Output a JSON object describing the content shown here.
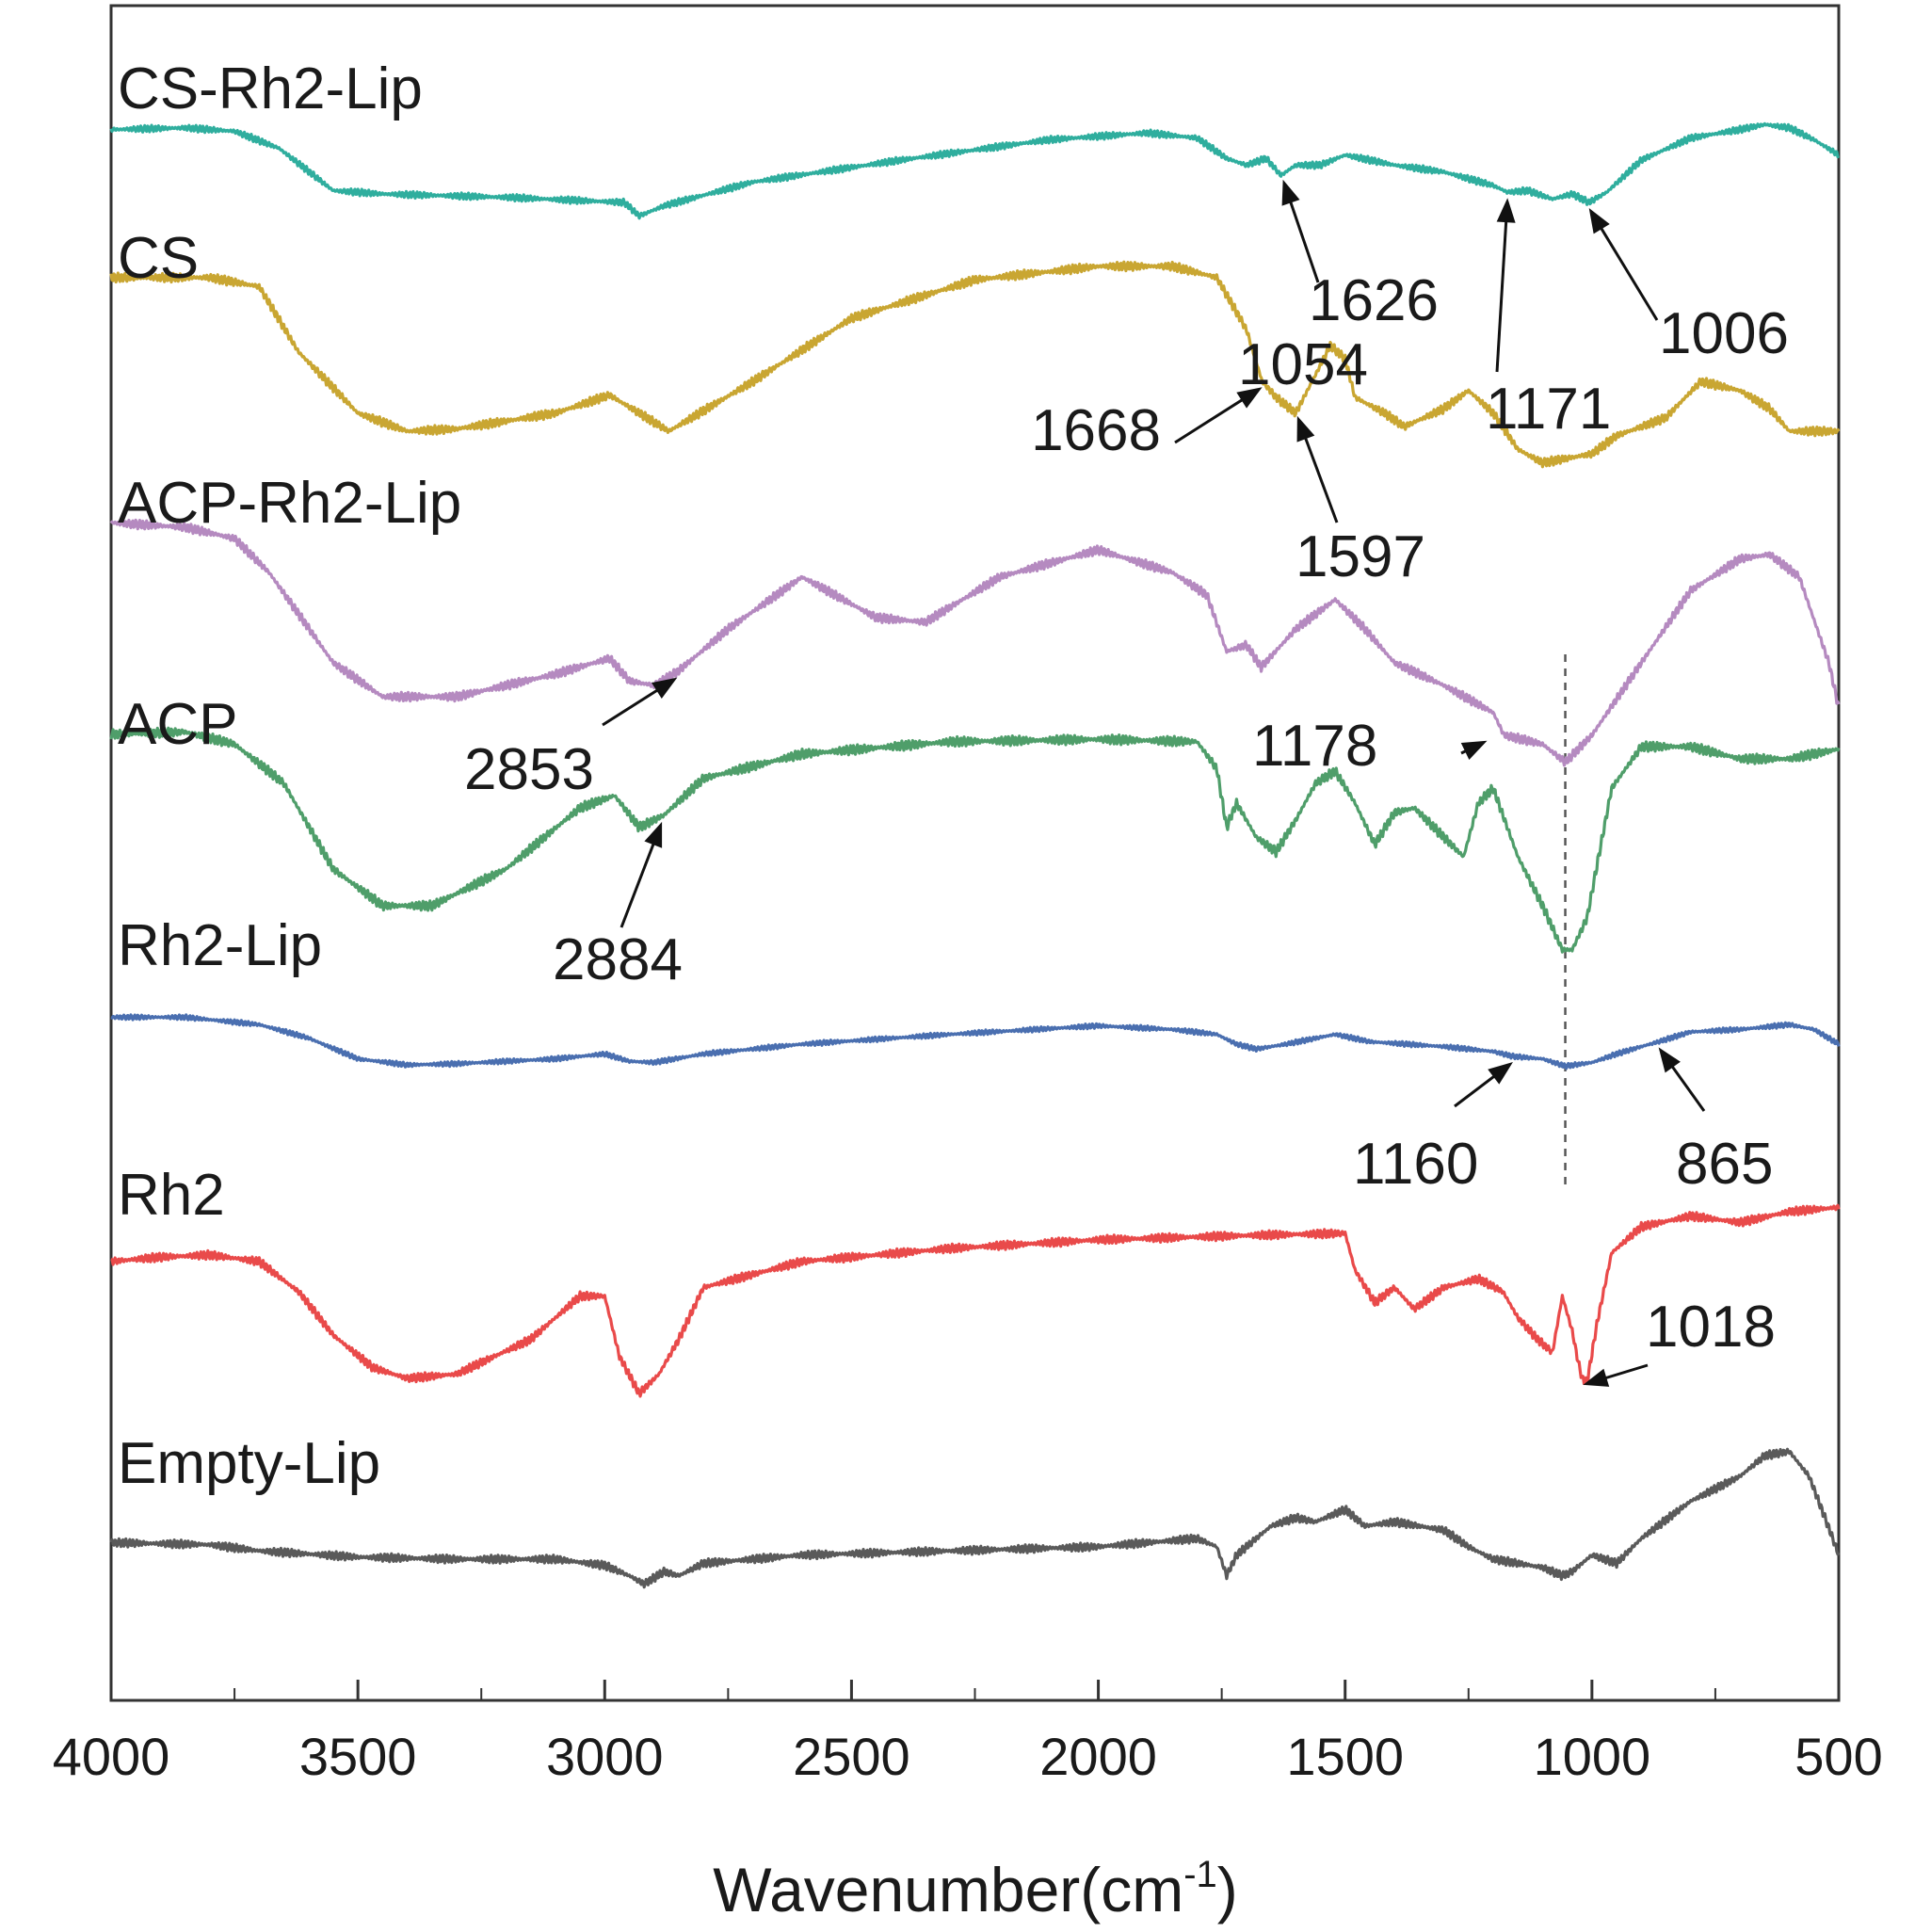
{
  "chart_data": {
    "type": "line",
    "xlabel": "Wavenumber(cm",
    "xlabel_sup": "-1",
    "xlabel_close": ")",
    "xlim": [
      4000,
      500
    ],
    "ticks": [
      "4000",
      "3500",
      "3000",
      "2500",
      "2000",
      "1500",
      "1000",
      "500"
    ],
    "series": [
      {
        "name": "CS-Rh2-Lip",
        "color": "#2fae9e",
        "points": [
          [
            4000,
            0.93
          ],
          [
            3850,
            0.94
          ],
          [
            3750,
            0.92
          ],
          [
            3660,
            0.82
          ],
          [
            3550,
            0.57
          ],
          [
            3450,
            0.55
          ],
          [
            3200,
            0.53
          ],
          [
            2960,
            0.5
          ],
          [
            2930,
            0.42
          ],
          [
            2880,
            0.48
          ],
          [
            2700,
            0.62
          ],
          [
            2400,
            0.75
          ],
          [
            2100,
            0.87
          ],
          [
            1900,
            0.91
          ],
          [
            1800,
            0.88
          ],
          [
            1740,
            0.76
          ],
          [
            1700,
            0.72
          ],
          [
            1660,
            0.76
          ],
          [
            1630,
            0.66
          ],
          [
            1600,
            0.72
          ],
          [
            1550,
            0.72
          ],
          [
            1500,
            0.78
          ],
          [
            1450,
            0.75
          ],
          [
            1400,
            0.72
          ],
          [
            1300,
            0.68
          ],
          [
            1200,
            0.6
          ],
          [
            1171,
            0.56
          ],
          [
            1130,
            0.57
          ],
          [
            1080,
            0.52
          ],
          [
            1040,
            0.55
          ],
          [
            1006,
            0.5
          ],
          [
            970,
            0.56
          ],
          [
            900,
            0.75
          ],
          [
            800,
            0.88
          ],
          [
            700,
            0.93
          ],
          [
            650,
            0.96
          ],
          [
            600,
            0.94
          ],
          [
            550,
            0.87
          ],
          [
            500,
            0.78
          ]
        ],
        "y_base": 0
      },
      {
        "name": "CS",
        "color": "#c9a632",
        "points": [
          [
            4000,
            0.98
          ],
          [
            3800,
            0.98
          ],
          [
            3700,
            0.94
          ],
          [
            3620,
            0.65
          ],
          [
            3500,
            0.38
          ],
          [
            3400,
            0.3
          ],
          [
            3300,
            0.31
          ],
          [
            3100,
            0.38
          ],
          [
            2990,
            0.46
          ],
          [
            2930,
            0.38
          ],
          [
            2870,
            0.3
          ],
          [
            2700,
            0.52
          ],
          [
            2500,
            0.8
          ],
          [
            2250,
            0.97
          ],
          [
            2000,
            1.03
          ],
          [
            1850,
            1.03
          ],
          [
            1760,
            0.98
          ],
          [
            1700,
            0.75
          ],
          [
            1668,
            0.52
          ],
          [
            1640,
            0.45
          ],
          [
            1600,
            0.38
          ],
          [
            1560,
            0.55
          ],
          [
            1530,
            0.68
          ],
          [
            1500,
            0.62
          ],
          [
            1480,
            0.45
          ],
          [
            1420,
            0.38
          ],
          [
            1380,
            0.32
          ],
          [
            1300,
            0.4
          ],
          [
            1250,
            0.48
          ],
          [
            1200,
            0.38
          ],
          [
            1150,
            0.22
          ],
          [
            1100,
            0.16
          ],
          [
            1050,
            0.18
          ],
          [
            1000,
            0.2
          ],
          [
            950,
            0.28
          ],
          [
            850,
            0.36
          ],
          [
            780,
            0.52
          ],
          [
            700,
            0.48
          ],
          [
            640,
            0.4
          ],
          [
            600,
            0.3
          ],
          [
            500,
            0.3
          ]
        ],
        "y_base": 1
      },
      {
        "name": "ACP-Rh2-Lip",
        "color": "#b58ac0",
        "points": [
          [
            4000,
            1.02
          ],
          [
            3850,
            1.0
          ],
          [
            3750,
            0.95
          ],
          [
            3680,
            0.8
          ],
          [
            3550,
            0.4
          ],
          [
            3450,
            0.25
          ],
          [
            3300,
            0.25
          ],
          [
            3100,
            0.35
          ],
          [
            2990,
            0.42
          ],
          [
            2950,
            0.32
          ],
          [
            2900,
            0.3
          ],
          [
            2853,
            0.36
          ],
          [
            2750,
            0.55
          ],
          [
            2600,
            0.78
          ],
          [
            2450,
            0.6
          ],
          [
            2350,
            0.58
          ],
          [
            2200,
            0.78
          ],
          [
            2000,
            0.9
          ],
          [
            1850,
            0.8
          ],
          [
            1780,
            0.7
          ],
          [
            1740,
            0.45
          ],
          [
            1700,
            0.48
          ],
          [
            1670,
            0.38
          ],
          [
            1600,
            0.55
          ],
          [
            1520,
            0.68
          ],
          [
            1460,
            0.55
          ],
          [
            1400,
            0.4
          ],
          [
            1300,
            0.3
          ],
          [
            1200,
            0.18
          ],
          [
            1178,
            0.08
          ],
          [
            1100,
            0.04
          ],
          [
            1054,
            -0.04
          ],
          [
            1000,
            0.08
          ],
          [
            900,
            0.4
          ],
          [
            800,
            0.72
          ],
          [
            700,
            0.86
          ],
          [
            640,
            0.88
          ],
          [
            580,
            0.78
          ],
          [
            520,
            0.4
          ],
          [
            500,
            0.2
          ]
        ],
        "y_base": 2
      },
      {
        "name": "ACP",
        "color": "#4f9e6a",
        "points": [
          [
            4000,
            1.0
          ],
          [
            3850,
            1.01
          ],
          [
            3750,
            0.96
          ],
          [
            3650,
            0.8
          ],
          [
            3550,
            0.45
          ],
          [
            3450,
            0.3
          ],
          [
            3350,
            0.3
          ],
          [
            3200,
            0.45
          ],
          [
            3050,
            0.7
          ],
          [
            2980,
            0.75
          ],
          [
            2930,
            0.62
          ],
          [
            2880,
            0.67
          ],
          [
            2800,
            0.82
          ],
          [
            2600,
            0.92
          ],
          [
            2300,
            0.97
          ],
          [
            2000,
            0.98
          ],
          [
            1800,
            0.97
          ],
          [
            1760,
            0.86
          ],
          [
            1740,
            0.62
          ],
          [
            1720,
            0.72
          ],
          [
            1680,
            0.58
          ],
          [
            1640,
            0.52
          ],
          [
            1600,
            0.65
          ],
          [
            1560,
            0.8
          ],
          [
            1520,
            0.85
          ],
          [
            1480,
            0.72
          ],
          [
            1440,
            0.55
          ],
          [
            1400,
            0.68
          ],
          [
            1360,
            0.7
          ],
          [
            1300,
            0.58
          ],
          [
            1260,
            0.5
          ],
          [
            1230,
            0.72
          ],
          [
            1200,
            0.78
          ],
          [
            1150,
            0.5
          ],
          [
            1100,
            0.3
          ],
          [
            1060,
            0.12
          ],
          [
            1040,
            0.12
          ],
          [
            1010,
            0.25
          ],
          [
            960,
            0.78
          ],
          [
            900,
            0.95
          ],
          [
            800,
            0.95
          ],
          [
            700,
            0.9
          ],
          [
            600,
            0.9
          ],
          [
            500,
            0.94
          ]
        ],
        "y_base": 3
      },
      {
        "name": "Rh2-Lip",
        "color": "#4a6fb0",
        "points": [
          [
            4000,
            0.92
          ],
          [
            3850,
            0.92
          ],
          [
            3700,
            0.86
          ],
          [
            3600,
            0.75
          ],
          [
            3500,
            0.58
          ],
          [
            3400,
            0.53
          ],
          [
            3300,
            0.54
          ],
          [
            3100,
            0.58
          ],
          [
            3000,
            0.62
          ],
          [
            2950,
            0.56
          ],
          [
            2900,
            0.55
          ],
          [
            2800,
            0.62
          ],
          [
            2600,
            0.7
          ],
          [
            2300,
            0.78
          ],
          [
            2000,
            0.85
          ],
          [
            1850,
            0.82
          ],
          [
            1760,
            0.78
          ],
          [
            1720,
            0.7
          ],
          [
            1680,
            0.66
          ],
          [
            1620,
            0.7
          ],
          [
            1520,
            0.78
          ],
          [
            1450,
            0.72
          ],
          [
            1300,
            0.68
          ],
          [
            1200,
            0.64
          ],
          [
            1160,
            0.6
          ],
          [
            1100,
            0.58
          ],
          [
            1054,
            0.52
          ],
          [
            1000,
            0.55
          ],
          [
            950,
            0.62
          ],
          [
            900,
            0.68
          ],
          [
            865,
            0.72
          ],
          [
            800,
            0.8
          ],
          [
            700,
            0.82
          ],
          [
            600,
            0.86
          ],
          [
            550,
            0.82
          ],
          [
            500,
            0.7
          ]
        ],
        "y_base": 4
      },
      {
        "name": "Rh2",
        "color": "#e94a4a",
        "points": [
          [
            4000,
            0.74
          ],
          [
            3900,
            0.76
          ],
          [
            3800,
            0.77
          ],
          [
            3700,
            0.74
          ],
          [
            3620,
            0.6
          ],
          [
            3550,
            0.4
          ],
          [
            3470,
            0.25
          ],
          [
            3400,
            0.2
          ],
          [
            3300,
            0.22
          ],
          [
            3150,
            0.38
          ],
          [
            3050,
            0.58
          ],
          [
            3000,
            0.58
          ],
          [
            2970,
            0.3
          ],
          [
            2930,
            0.13
          ],
          [
            2890,
            0.22
          ],
          [
            2850,
            0.38
          ],
          [
            2800,
            0.62
          ],
          [
            2600,
            0.74
          ],
          [
            2300,
            0.8
          ],
          [
            2000,
            0.84
          ],
          [
            1700,
            0.86
          ],
          [
            1500,
            0.87
          ],
          [
            1480,
            0.7
          ],
          [
            1440,
            0.55
          ],
          [
            1400,
            0.62
          ],
          [
            1360,
            0.52
          ],
          [
            1300,
            0.62
          ],
          [
            1230,
            0.66
          ],
          [
            1180,
            0.6
          ],
          [
            1150,
            0.48
          ],
          [
            1110,
            0.38
          ],
          [
            1080,
            0.32
          ],
          [
            1060,
            0.58
          ],
          [
            1040,
            0.42
          ],
          [
            1030,
            0.3
          ],
          [
            1020,
            0.2
          ],
          [
            1010,
            0.18
          ],
          [
            990,
            0.45
          ],
          [
            960,
            0.78
          ],
          [
            900,
            0.9
          ],
          [
            800,
            0.95
          ],
          [
            700,
            0.92
          ],
          [
            600,
            0.97
          ],
          [
            500,
            0.99
          ]
        ],
        "y_base": 5
      },
      {
        "name": "Empty-Lip",
        "color": "#5a5a5a",
        "points": [
          [
            4000,
            0.28
          ],
          [
            3800,
            0.27
          ],
          [
            3700,
            0.24
          ],
          [
            3500,
            0.21
          ],
          [
            3300,
            0.2
          ],
          [
            3100,
            0.2
          ],
          [
            3000,
            0.17
          ],
          [
            2950,
            0.12
          ],
          [
            2920,
            0.08
          ],
          [
            2880,
            0.14
          ],
          [
            2850,
            0.12
          ],
          [
            2800,
            0.18
          ],
          [
            2600,
            0.22
          ],
          [
            2300,
            0.24
          ],
          [
            2000,
            0.26
          ],
          [
            1800,
            0.3
          ],
          [
            1760,
            0.26
          ],
          [
            1740,
            0.12
          ],
          [
            1720,
            0.22
          ],
          [
            1650,
            0.36
          ],
          [
            1600,
            0.4
          ],
          [
            1560,
            0.38
          ],
          [
            1500,
            0.44
          ],
          [
            1460,
            0.36
          ],
          [
            1400,
            0.38
          ],
          [
            1300,
            0.34
          ],
          [
            1250,
            0.26
          ],
          [
            1200,
            0.2
          ],
          [
            1150,
            0.18
          ],
          [
            1100,
            0.16
          ],
          [
            1060,
            0.12
          ],
          [
            1040,
            0.14
          ],
          [
            1000,
            0.22
          ],
          [
            950,
            0.18
          ],
          [
            900,
            0.3
          ],
          [
            800,
            0.48
          ],
          [
            700,
            0.6
          ],
          [
            650,
            0.7
          ],
          [
            600,
            0.72
          ],
          [
            560,
            0.6
          ],
          [
            520,
            0.35
          ],
          [
            500,
            0.22
          ]
        ],
        "y_base": 6
      }
    ],
    "annotations": [
      {
        "text": "1626",
        "x": 1626,
        "series": 0
      },
      {
        "text": "1171",
        "x": 1171,
        "series": 0
      },
      {
        "text": "1006",
        "x": 1006,
        "series": 0
      },
      {
        "text": "1668",
        "x": 1668,
        "series": 1
      },
      {
        "text": "1597",
        "x": 1597,
        "series": 1
      },
      {
        "text": "1054",
        "x": 1054,
        "series": 2
      },
      {
        "text": "2853",
        "x": 2853,
        "series": 2
      },
      {
        "text": "1178",
        "x": 1178,
        "series": 2
      },
      {
        "text": "2884",
        "x": 2884,
        "series": 3
      },
      {
        "text": "1160",
        "x": 1160,
        "series": 4
      },
      {
        "text": "865",
        "x": 865,
        "series": 4
      },
      {
        "text": "1018",
        "x": 1018,
        "series": 5
      }
    ],
    "guide_line_x": 1054
  }
}
